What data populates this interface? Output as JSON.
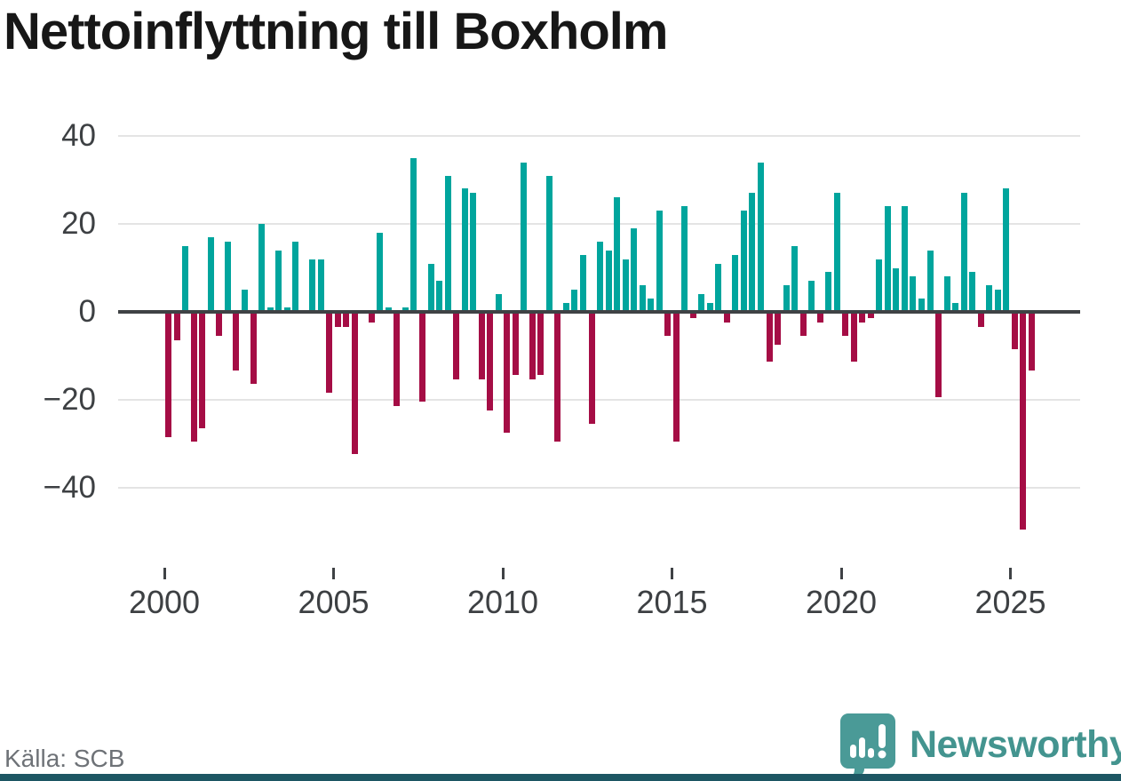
{
  "title": "Nettoinflyttning till Boxholm",
  "source_label": "Källa: SCB",
  "branding": {
    "name": "Newsworthy",
    "logo_icon": "speech-bubble-bar-chart-icon"
  },
  "colors": {
    "positive_bar": "#00a59d",
    "negative_bar": "#a50d45",
    "zero_axis": "#3f4245",
    "gridline": "#e4e4e4",
    "tick_label": "#3d4043",
    "title_text": "#171717",
    "source_text": "#6e7277",
    "brand_teal": "#43948f",
    "footer_strip": "#1d5663"
  },
  "chart_data": {
    "type": "bar",
    "title": "Nettoinflyttning till Boxholm",
    "xlabel": "",
    "ylabel": "",
    "frequency": "quarterly",
    "start_period": "2000-Q1",
    "end_period": "2025-Q3",
    "values": [
      -28,
      -6,
      15,
      -29,
      -26,
      17,
      -5,
      16,
      -13,
      5,
      -16,
      20,
      1,
      14,
      1,
      16,
      0,
      12,
      12,
      -18,
      -3,
      -3,
      -32,
      0,
      -2,
      18,
      1,
      -21,
      1,
      35,
      -20,
      11,
      7,
      31,
      -15,
      28,
      27,
      -15,
      -22,
      4,
      -27,
      -14,
      34,
      -15,
      -14,
      31,
      -29,
      2,
      5,
      13,
      -25,
      16,
      14,
      26,
      12,
      19,
      6,
      3,
      23,
      -5,
      -29,
      24,
      -1,
      4,
      2,
      11,
      -2,
      13,
      23,
      27,
      34,
      -11,
      -7,
      6,
      15,
      -5,
      7,
      -2,
      9,
      27,
      -5,
      -11,
      -2,
      -1,
      12,
      24,
      10,
      24,
      8,
      3,
      14,
      -19,
      8,
      2,
      27,
      9,
      -3,
      6,
      5,
      28,
      -8,
      -49,
      -13
    ],
    "yticks": [
      40,
      20,
      0,
      -20,
      -40
    ],
    "ytick_labels": [
      "40",
      "20",
      "0",
      "−20",
      "−40"
    ],
    "xticks": [
      2000,
      2005,
      2010,
      2015,
      2020,
      2025
    ],
    "ylim": [
      -52,
      42
    ],
    "grid": true,
    "legend": false,
    "bar_colors": {
      "positive": "#00a59d",
      "negative": "#a50d45"
    }
  }
}
